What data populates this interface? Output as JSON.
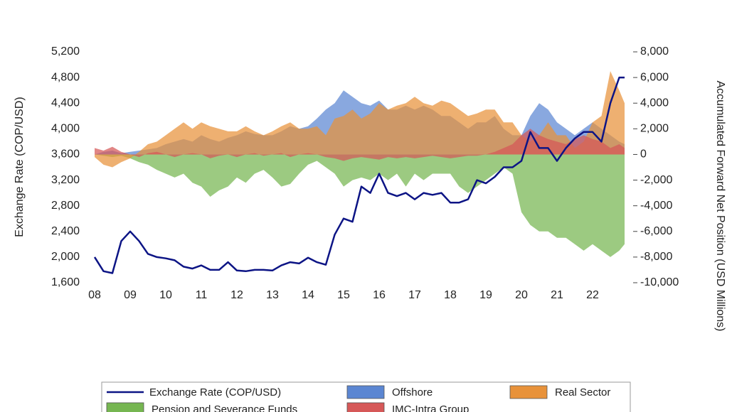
{
  "chart_data": {
    "type": "area",
    "y_label": "Exchange Rate (COP/USD)",
    "y2_label": "Accumulated Forward Net Position (USD Millions)",
    "xlim": [
      2008,
      2023
    ],
    "xticks": [
      {
        "value": 2008,
        "label": "08"
      },
      {
        "value": 2009,
        "label": "09"
      },
      {
        "value": 2010,
        "label": "10"
      },
      {
        "value": 2011,
        "label": "11"
      },
      {
        "value": 2012,
        "label": "12"
      },
      {
        "value": 2013,
        "label": "13"
      },
      {
        "value": 2014,
        "label": "14"
      },
      {
        "value": 2015,
        "label": "15"
      },
      {
        "value": 2016,
        "label": "16"
      },
      {
        "value": 2017,
        "label": "17"
      },
      {
        "value": 2018,
        "label": "18"
      },
      {
        "value": 2019,
        "label": "19"
      },
      {
        "value": 2020,
        "label": "20"
      },
      {
        "value": 2021,
        "label": "21"
      },
      {
        "value": 2022,
        "label": "22"
      }
    ],
    "ylim": [
      1600,
      5200
    ],
    "yticks": [
      {
        "value": 1600,
        "label": "1,600"
      },
      {
        "value": 2000,
        "label": "2,000"
      },
      {
        "value": 2400,
        "label": "2,400"
      },
      {
        "value": 2800,
        "label": "2,800"
      },
      {
        "value": 3200,
        "label": "3,200"
      },
      {
        "value": 3600,
        "label": "3,600"
      },
      {
        "value": 4000,
        "label": "4,000"
      },
      {
        "value": 4400,
        "label": "4,400"
      },
      {
        "value": 4800,
        "label": "4,800"
      },
      {
        "value": 5200,
        "label": "5,200"
      }
    ],
    "y2lim": [
      -10000,
      8000
    ],
    "y2ticks": [
      {
        "value": -10000,
        "label": "-10,000"
      },
      {
        "value": -8000,
        "label": "-8,000"
      },
      {
        "value": -6000,
        "label": "-6,000"
      },
      {
        "value": -4000,
        "label": "-4,000"
      },
      {
        "value": -2000,
        "label": "-2,000"
      },
      0,
      {
        "value": 2000,
        "label": "2,000"
      },
      {
        "value": 4000,
        "label": "4,000"
      },
      {
        "value": 6000,
        "label": "6,000"
      },
      {
        "value": 8000,
        "label": "8,000"
      }
    ],
    "x": [
      2008,
      2008.25,
      2008.5,
      2008.75,
      2009,
      2009.25,
      2009.5,
      2009.75,
      2010,
      2010.25,
      2010.5,
      2010.75,
      2011,
      2011.25,
      2011.5,
      2011.75,
      2012,
      2012.25,
      2012.5,
      2012.75,
      2013,
      2013.25,
      2013.5,
      2013.75,
      2014,
      2014.25,
      2014.5,
      2014.75,
      2015,
      2015.25,
      2015.5,
      2015.75,
      2016,
      2016.25,
      2016.5,
      2016.75,
      2017,
      2017.25,
      2017.5,
      2017.75,
      2018,
      2018.25,
      2018.5,
      2018.75,
      2019,
      2019.25,
      2019.5,
      2019.75,
      2020,
      2020.25,
      2020.5,
      2020.75,
      2021,
      2021.25,
      2021.5,
      2021.75,
      2022,
      2022.25,
      2022.5,
      2022.75,
      2022.9
    ],
    "series": [
      {
        "name": "Exchange Rate (COP/USD)",
        "type": "line",
        "axis": "y",
        "color": "#0c1485",
        "values": [
          2000,
          1780,
          1750,
          2250,
          2400,
          2250,
          2050,
          2000,
          1980,
          1950,
          1850,
          1820,
          1870,
          1800,
          1800,
          1920,
          1790,
          1780,
          1800,
          1800,
          1790,
          1870,
          1920,
          1900,
          1990,
          1920,
          1880,
          2350,
          2600,
          2550,
          3100,
          3000,
          3300,
          3000,
          2950,
          3000,
          2900,
          3000,
          2970,
          3000,
          2850,
          2850,
          2900,
          3200,
          3150,
          3250,
          3400,
          3400,
          3500,
          3950,
          3700,
          3700,
          3500,
          3700,
          3850,
          3950,
          3950,
          3800,
          4400,
          4800,
          4800
        ]
      },
      {
        "name": "Offshore",
        "type": "area",
        "axis": "y2",
        "color": "#5b86d2",
        "values": [
          0,
          200,
          300,
          100,
          200,
          300,
          400,
          500,
          800,
          1000,
          1200,
          1000,
          1500,
          1200,
          1000,
          1300,
          1500,
          1800,
          1600,
          1500,
          1500,
          1800,
          2200,
          2000,
          2200,
          2800,
          3500,
          4000,
          5000,
          4500,
          4000,
          3800,
          4200,
          3500,
          3500,
          3800,
          3500,
          3800,
          3500,
          3000,
          3000,
          2500,
          2000,
          2500,
          2500,
          3000,
          2000,
          1500,
          1500,
          3000,
          4000,
          3500,
          2500,
          2000,
          1500,
          2000,
          2500,
          2000,
          1500,
          1000,
          800
        ]
      },
      {
        "name": "Real Sector",
        "type": "area",
        "axis": "y2",
        "color": "#e8923a",
        "values": [
          -200,
          -800,
          -1000,
          -600,
          -300,
          200,
          800,
          1000,
          1500,
          2000,
          2500,
          2000,
          2500,
          2200,
          2000,
          1800,
          1800,
          2200,
          1800,
          1500,
          1800,
          2200,
          2500,
          2000,
          2000,
          2200,
          1500,
          2800,
          3000,
          3500,
          2800,
          3200,
          4000,
          3500,
          3800,
          4000,
          4500,
          4000,
          3800,
          4200,
          4000,
          3500,
          3000,
          3200,
          3500,
          3500,
          2500,
          2500,
          1500,
          1000,
          1500,
          2500,
          1500,
          1500,
          500,
          1000,
          2500,
          3000,
          6500,
          5000,
          4000
        ]
      },
      {
        "name": "Pension and Severance Funds",
        "type": "area",
        "axis": "y2",
        "color": "#76b651",
        "values": [
          0,
          -100,
          -200,
          -100,
          -300,
          -600,
          -800,
          -1200,
          -1500,
          -1800,
          -1500,
          -2200,
          -2500,
          -3300,
          -2800,
          -2500,
          -1800,
          -2200,
          -1500,
          -1200,
          -1800,
          -2500,
          -2300,
          -1500,
          -800,
          -500,
          -1000,
          -1500,
          -2500,
          -2000,
          -1800,
          -2000,
          -1500,
          -2000,
          -1500,
          -2500,
          -1500,
          -2000,
          -1500,
          -1500,
          -1500,
          -2500,
          -3000,
          -2500,
          -2000,
          -1500,
          -1000,
          -1500,
          -4500,
          -5500,
          -6000,
          -6000,
          -6500,
          -6500,
          -7000,
          -7500,
          -7000,
          -7500,
          -8000,
          -7500,
          -7000
        ]
      },
      {
        "name": "IMC-Intra Group",
        "type": "area",
        "axis": "y2",
        "color": "#d65858",
        "values": [
          500,
          300,
          600,
          200,
          0,
          -200,
          100,
          200,
          0,
          -200,
          0,
          100,
          0,
          -300,
          -100,
          0,
          -200,
          0,
          100,
          -100,
          0,
          100,
          -200,
          0,
          100,
          0,
          -200,
          -300,
          -500,
          -300,
          -200,
          -300,
          -400,
          -200,
          -300,
          -200,
          -300,
          -200,
          -100,
          -200,
          -300,
          -200,
          -100,
          -100,
          0,
          200,
          500,
          800,
          1500,
          2000,
          1500,
          1200,
          1000,
          800,
          1200,
          1500,
          1200,
          1000,
          500,
          800,
          500
        ]
      }
    ]
  }
}
